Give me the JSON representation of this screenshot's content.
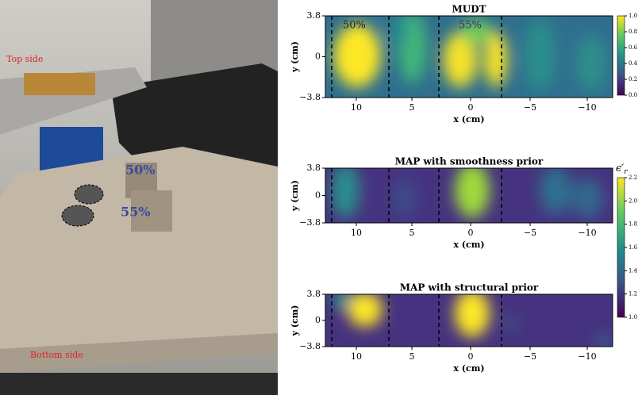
{
  "photo": {
    "top_side": "Top side",
    "bottom_side": "Bottom side",
    "cube_50": "50%",
    "cube_55": "55%"
  },
  "panels": [
    {
      "title": "MUDT",
      "ylabel": "y (cm)",
      "xlabel": "x (cm)",
      "yticks": [
        "3.8",
        "0",
        "−3.8"
      ],
      "xticks": [
        "10",
        "5",
        "0",
        "−5",
        "−10"
      ],
      "annotations": [
        "50%",
        "55%"
      ]
    },
    {
      "title": "MAP with smoothness prior",
      "ylabel": "y (cm)",
      "xlabel": "x (cm)",
      "yticks": [
        "3.8",
        "0",
        "−3.8"
      ],
      "xticks": [
        "10",
        "5",
        "0",
        "−5",
        "−10"
      ]
    },
    {
      "title": "MAP with structural prior",
      "ylabel": "y (cm)",
      "xlabel": "x (cm)",
      "yticks": [
        "3.8",
        "0",
        "−3.8"
      ],
      "xticks": [
        "10",
        "5",
        "0",
        "−5",
        "−10"
      ]
    }
  ],
  "colorbars": [
    {
      "ticks": [
        "1.0",
        "0.8",
        "0.6",
        "0.4",
        "0.2",
        "0.0"
      ]
    },
    {
      "symbol": "ϵ′",
      "subscript": "r",
      "ticks": [
        "2.2",
        "2.0",
        "1.8",
        "1.6",
        "1.4",
        "1.2",
        "1.0"
      ]
    }
  ]
}
